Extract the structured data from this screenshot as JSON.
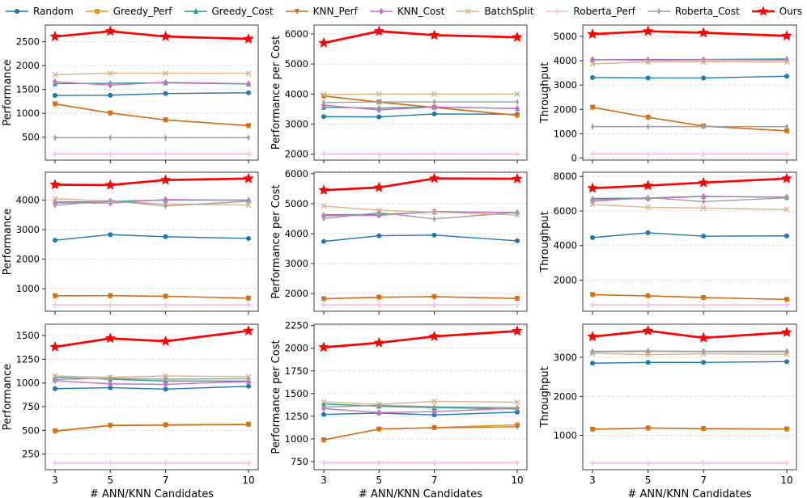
{
  "figure": {
    "xlabel": "# ANN/KNN Candidates",
    "x_tick_labels": [
      "3",
      "5",
      "7",
      "10"
    ]
  },
  "legend": {
    "items": [
      {
        "label": "Random",
        "color": "#1f77b4",
        "marker": "circle"
      },
      {
        "label": "Greedy_Perf",
        "color": "#e8951c",
        "marker": "square"
      },
      {
        "label": "Greedy_Cost",
        "color": "#1fa187",
        "marker": "triangle-up"
      },
      {
        "label": "KNN_Perf",
        "color": "#d2691e",
        "marker": "triangle-down"
      },
      {
        "label": "KNN_Cost",
        "color": "#c96fc9",
        "marker": "diamond"
      },
      {
        "label": "BatchSplit",
        "color": "#d8b48a",
        "marker": "x"
      },
      {
        "label": "Roberta_Perf",
        "color": "#fbb7df",
        "marker": "plus"
      },
      {
        "label": "Roberta_Cost",
        "color": "#9e9e9e",
        "marker": "thin-diamond"
      },
      {
        "label": "Ours",
        "color": "#ff0000",
        "marker": "star"
      }
    ]
  },
  "chart_data": [
    {
      "type": "line",
      "position": "row0-col0",
      "ylabel": "Performance",
      "xlabel": "",
      "x": [
        3,
        5,
        7,
        10
      ],
      "xlim": [
        2.65,
        10.35
      ],
      "xticks": [
        3,
        5,
        7,
        10
      ],
      "ylim": [
        20,
        2850
      ],
      "yticks": [
        500,
        1000,
        1500,
        2000,
        2500
      ],
      "grid": true,
      "show_x_labels": false,
      "series": [
        {
          "name": "Random",
          "values": [
            1375,
            1380,
            1415,
            1430
          ]
        },
        {
          "name": "Greedy_Perf",
          "values": [
            1200,
            1010,
            865,
            745
          ]
        },
        {
          "name": "Greedy_Cost",
          "values": [
            1620,
            1630,
            1640,
            1615
          ]
        },
        {
          "name": "KNN_Perf",
          "values": [
            1195,
            1005,
            860,
            740
          ]
        },
        {
          "name": "KNN_Cost",
          "values": [
            1660,
            1590,
            1650,
            1620
          ]
        },
        {
          "name": "BatchSplit",
          "values": [
            1810,
            1840,
            1840,
            1840
          ]
        },
        {
          "name": "Roberta_Perf",
          "values": [
            150,
            150,
            150,
            150
          ]
        },
        {
          "name": "Roberta_Cost",
          "values": [
            490,
            490,
            490,
            490
          ]
        },
        {
          "name": "Ours",
          "values": [
            2610,
            2720,
            2610,
            2560
          ]
        }
      ]
    },
    {
      "type": "line",
      "position": "row0-col1",
      "ylabel": "Performance per Cost",
      "xlabel": "",
      "x": [
        3,
        5,
        7,
        10
      ],
      "xlim": [
        2.65,
        10.35
      ],
      "xticks": [
        3,
        5,
        7,
        10
      ],
      "ylim": [
        1805,
        6295
      ],
      "yticks": [
        2000,
        3000,
        4000,
        5000,
        6000
      ],
      "grid": true,
      "show_x_labels": false,
      "series": [
        {
          "name": "Random",
          "values": [
            3250,
            3240,
            3340,
            3330
          ]
        },
        {
          "name": "Greedy_Perf",
          "values": [
            3940,
            3740,
            3560,
            3300
          ]
        },
        {
          "name": "Greedy_Cost",
          "values": [
            3560,
            3530,
            3570,
            3520
          ]
        },
        {
          "name": "KNN_Perf",
          "values": [
            3930,
            3730,
            3550,
            3290
          ]
        },
        {
          "name": "KNN_Cost",
          "values": [
            3630,
            3470,
            3570,
            3520
          ]
        },
        {
          "name": "BatchSplit",
          "values": [
            3980,
            4000,
            4000,
            4000
          ]
        },
        {
          "name": "Roberta_Perf",
          "values": [
            2010,
            2010,
            2010,
            2010
          ]
        },
        {
          "name": "Roberta_Cost",
          "values": [
            3720,
            3740,
            3740,
            3740
          ]
        },
        {
          "name": "Ours",
          "values": [
            5700,
            6090,
            5960,
            5890
          ]
        }
      ]
    },
    {
      "type": "line",
      "position": "row0-col2",
      "ylabel": "Throughput",
      "xlabel": "",
      "x": [
        3,
        5,
        7,
        10
      ],
      "xlim": [
        2.65,
        10.35
      ],
      "xticks": [
        3,
        5,
        7,
        10
      ],
      "ylim": [
        -85,
        5465
      ],
      "yticks": [
        0,
        1000,
        2000,
        3000,
        4000,
        5000
      ],
      "grid": true,
      "show_x_labels": false,
      "series": [
        {
          "name": "Random",
          "values": [
            3310,
            3290,
            3290,
            3360
          ]
        },
        {
          "name": "Greedy_Perf",
          "values": [
            2090,
            1680,
            1320,
            1120
          ]
        },
        {
          "name": "Greedy_Cost",
          "values": [
            4040,
            4050,
            4050,
            4070
          ]
        },
        {
          "name": "KNN_Perf",
          "values": [
            2080,
            1670,
            1310,
            1110
          ]
        },
        {
          "name": "KNN_Cost",
          "values": [
            4050,
            4020,
            4040,
            4030
          ]
        },
        {
          "name": "BatchSplit",
          "values": [
            3870,
            3950,
            3950,
            3950
          ]
        },
        {
          "name": "Roberta_Perf",
          "values": [
            170,
            170,
            170,
            170
          ]
        },
        {
          "name": "Roberta_Cost",
          "values": [
            1290,
            1290,
            1290,
            1290
          ]
        },
        {
          "name": "Ours",
          "values": [
            5090,
            5210,
            5150,
            5020
          ]
        }
      ]
    },
    {
      "type": "line",
      "position": "row1-col0",
      "ylabel": "Performance",
      "xlabel": "",
      "x": [
        3,
        5,
        7,
        10
      ],
      "xlim": [
        2.65,
        10.35
      ],
      "xticks": [
        3,
        5,
        7,
        10
      ],
      "ylim": [
        235,
        4945
      ],
      "yticks": [
        1000,
        2000,
        3000,
        4000
      ],
      "grid": true,
      "show_x_labels": false,
      "series": [
        {
          "name": "Random",
          "values": [
            2640,
            2830,
            2760,
            2700
          ]
        },
        {
          "name": "Greedy_Perf",
          "values": [
            760,
            765,
            745,
            680
          ]
        },
        {
          "name": "Greedy_Cost",
          "values": [
            3930,
            3950,
            4000,
            4000
          ]
        },
        {
          "name": "KNN_Perf",
          "values": [
            755,
            760,
            740,
            675
          ]
        },
        {
          "name": "KNN_Cost",
          "values": [
            3910,
            3900,
            4020,
            3990
          ]
        },
        {
          "name": "BatchSplit",
          "values": [
            4050,
            3960,
            3870,
            3830
          ]
        },
        {
          "name": "Roberta_Perf",
          "values": [
            450,
            450,
            450,
            450
          ]
        },
        {
          "name": "Roberta_Cost",
          "values": [
            3820,
            3980,
            3800,
            3960
          ]
        },
        {
          "name": "Ours",
          "values": [
            4520,
            4510,
            4680,
            4730
          ]
        }
      ]
    },
    {
      "type": "line",
      "position": "row1-col1",
      "ylabel": "Performance per Cost",
      "xlabel": "",
      "x": [
        3,
        5,
        7,
        10
      ],
      "xlim": [
        2.65,
        10.35
      ],
      "xticks": [
        3,
        5,
        7,
        10
      ],
      "ylim": [
        1410,
        6050
      ],
      "yticks": [
        2000,
        3000,
        4000,
        5000,
        6000
      ],
      "grid": true,
      "show_x_labels": false,
      "series": [
        {
          "name": "Random",
          "values": [
            3740,
            3930,
            3950,
            3760
          ]
        },
        {
          "name": "Greedy_Perf",
          "values": [
            1830,
            1880,
            1900,
            1840
          ]
        },
        {
          "name": "Greedy_Cost",
          "values": [
            4630,
            4640,
            4720,
            4710
          ]
        },
        {
          "name": "KNN_Perf",
          "values": [
            1825,
            1875,
            1895,
            1835
          ]
        },
        {
          "name": "KNN_Cost",
          "values": [
            4600,
            4610,
            4740,
            4700
          ]
        },
        {
          "name": "BatchSplit",
          "values": [
            4920,
            4780,
            4720,
            4620
          ]
        },
        {
          "name": "Roberta_Perf",
          "values": [
            1620,
            1620,
            1620,
            1620
          ]
        },
        {
          "name": "Roberta_Cost",
          "values": [
            4500,
            4700,
            4490,
            4710
          ]
        },
        {
          "name": "Ours",
          "values": [
            5450,
            5540,
            5840,
            5830
          ]
        }
      ]
    },
    {
      "type": "line",
      "position": "row1-col2",
      "ylabel": "Throughput",
      "xlabel": "",
      "x": [
        3,
        5,
        7,
        10
      ],
      "xlim": [
        2.65,
        10.35
      ],
      "xticks": [
        3,
        5,
        7,
        10
      ],
      "ylim": [
        195,
        8245
      ],
      "yticks": [
        2000,
        4000,
        6000,
        8000
      ],
      "grid": true,
      "show_x_labels": false,
      "series": [
        {
          "name": "Random",
          "values": [
            4460,
            4740,
            4540,
            4560
          ]
        },
        {
          "name": "Greedy_Perf",
          "values": [
            1160,
            1090,
            990,
            880
          ]
        },
        {
          "name": "Greedy_Cost",
          "values": [
            6720,
            6750,
            6850,
            6790
          ]
        },
        {
          "name": "KNN_Perf",
          "values": [
            1150,
            1080,
            985,
            875
          ]
        },
        {
          "name": "KNN_Cost",
          "values": [
            6650,
            6720,
            6840,
            6800
          ]
        },
        {
          "name": "BatchSplit",
          "values": [
            6380,
            6210,
            6170,
            6080
          ]
        },
        {
          "name": "Roberta_Perf",
          "values": [
            560,
            560,
            560,
            560
          ]
        },
        {
          "name": "Roberta_Cost",
          "values": [
            6550,
            6780,
            6540,
            6760
          ]
        },
        {
          "name": "Ours",
          "values": [
            7320,
            7470,
            7640,
            7880
          ]
        }
      ]
    },
    {
      "type": "line",
      "position": "row2-col0",
      "ylabel": "Performance",
      "xlabel": "# ANN/KNN Candidates",
      "x": [
        3,
        5,
        7,
        10
      ],
      "xlim": [
        2.65,
        10.35
      ],
      "xticks": [
        3,
        5,
        7,
        10
      ],
      "ylim": [
        85,
        1620
      ],
      "yticks": [
        250,
        500,
        750,
        1000,
        1250,
        1500
      ],
      "grid": true,
      "show_x_labels": true,
      "series": [
        {
          "name": "Random",
          "values": [
            940,
            950,
            935,
            965
          ]
        },
        {
          "name": "Greedy_Perf",
          "values": [
            495,
            555,
            560,
            565
          ]
        },
        {
          "name": "Greedy_Cost",
          "values": [
            1060,
            1040,
            1020,
            1020
          ]
        },
        {
          "name": "KNN_Perf",
          "values": [
            490,
            550,
            555,
            560
          ]
        },
        {
          "name": "KNN_Cost",
          "values": [
            1025,
            990,
            985,
            1015
          ]
        },
        {
          "name": "BatchSplit",
          "values": [
            1075,
            1060,
            1075,
            1065
          ]
        },
        {
          "name": "Roberta_Perf",
          "values": [
            155,
            155,
            155,
            155
          ]
        },
        {
          "name": "Roberta_Cost",
          "values": [
            1035,
            1050,
            1040,
            1045
          ]
        },
        {
          "name": "Ours",
          "values": [
            1380,
            1470,
            1440,
            1550
          ]
        }
      ]
    },
    {
      "type": "line",
      "position": "row2-col1",
      "ylabel": "Performance per Cost",
      "xlabel": "# ANN/KNN Candidates",
      "x": [
        3,
        5,
        7,
        10
      ],
      "xlim": [
        2.65,
        10.35
      ],
      "xticks": [
        3,
        5,
        7,
        10
      ],
      "ylim": [
        660,
        2265
      ],
      "yticks": [
        750,
        1000,
        1250,
        1500,
        1750,
        2000,
        2250
      ],
      "grid": true,
      "show_x_labels": true,
      "series": [
        {
          "name": "Random",
          "values": [
            1270,
            1285,
            1265,
            1295
          ]
        },
        {
          "name": "Greedy_Perf",
          "values": [
            990,
            1110,
            1125,
            1155
          ]
        },
        {
          "name": "Greedy_Cost",
          "values": [
            1385,
            1360,
            1345,
            1330
          ]
        },
        {
          "name": "KNN_Perf",
          "values": [
            988,
            1108,
            1122,
            1135
          ]
        },
        {
          "name": "KNN_Cost",
          "values": [
            1335,
            1290,
            1300,
            1340
          ]
        },
        {
          "name": "BatchSplit",
          "values": [
            1410,
            1380,
            1415,
            1405
          ]
        },
        {
          "name": "Roberta_Perf",
          "values": [
            735,
            735,
            735,
            735
          ]
        },
        {
          "name": "Roberta_Cost",
          "values": [
            1350,
            1370,
            1355,
            1345
          ]
        },
        {
          "name": "Ours",
          "values": [
            2010,
            2060,
            2130,
            2190
          ]
        }
      ]
    },
    {
      "type": "line",
      "position": "row2-col2",
      "ylabel": "Throughput",
      "xlabel": "# ANN/KNN Candidates",
      "x": [
        3,
        5,
        7,
        10
      ],
      "xlim": [
        2.65,
        10.35
      ],
      "xticks": [
        3,
        5,
        7,
        10
      ],
      "ylim": [
        120,
        3850
      ],
      "yticks": [
        1000,
        2000,
        3000
      ],
      "grid": true,
      "show_x_labels": true,
      "series": [
        {
          "name": "Random",
          "values": [
            2850,
            2870,
            2870,
            2890
          ]
        },
        {
          "name": "Greedy_Perf",
          "values": [
            1160,
            1190,
            1175,
            1165
          ]
        },
        {
          "name": "Greedy_Cost",
          "values": [
            3150,
            3160,
            3150,
            3150
          ]
        },
        {
          "name": "KNN_Perf",
          "values": [
            1155,
            1185,
            1170,
            1160
          ]
        },
        {
          "name": "KNN_Cost",
          "values": [
            3140,
            3155,
            3145,
            3145
          ]
        },
        {
          "name": "BatchSplit",
          "values": [
            3100,
            3070,
            3090,
            3080
          ]
        },
        {
          "name": "Roberta_Perf",
          "values": [
            290,
            290,
            290,
            290
          ]
        },
        {
          "name": "Roberta_Cost",
          "values": [
            3155,
            3165,
            3155,
            3160
          ]
        },
        {
          "name": "Ours",
          "values": [
            3530,
            3680,
            3500,
            3640
          ]
        }
      ]
    }
  ]
}
